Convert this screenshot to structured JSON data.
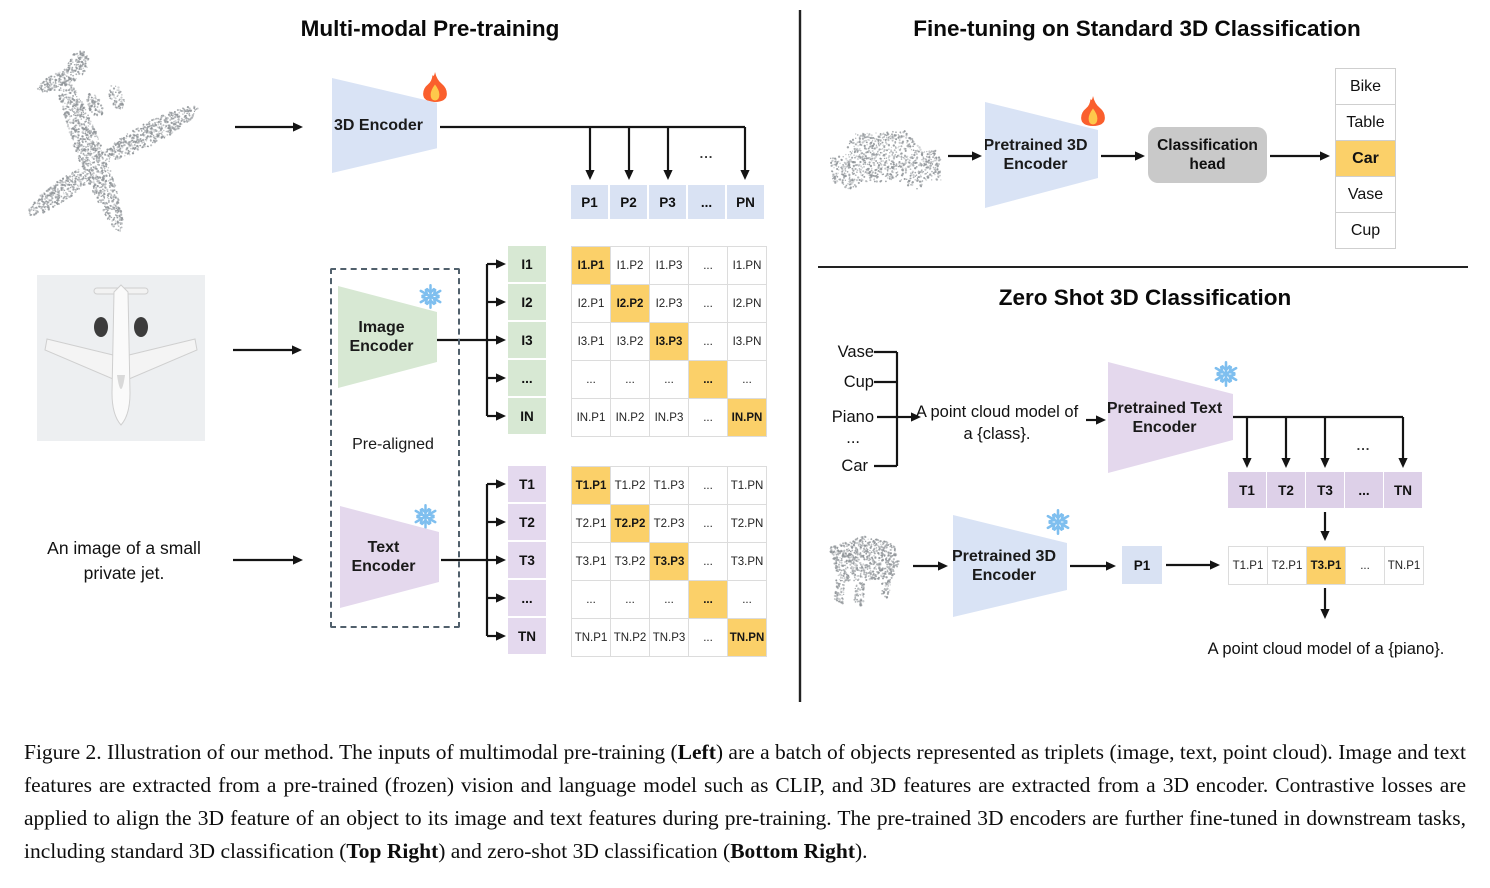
{
  "figure": {
    "left": {
      "title": "Multi-modal Pre-training",
      "encoder3d_label": "3D Encoder",
      "image_encoder": [
        "Image",
        "Encoder"
      ],
      "text_encoder": [
        "Text",
        "Encoder"
      ],
      "prealigned": "Pre-aligned",
      "input_text": [
        "An image of a small",
        "private jet."
      ],
      "dots": "...",
      "p_row": [
        "P1",
        "P2",
        "P3",
        "...",
        "PN"
      ],
      "i_col": [
        "I1",
        "I2",
        "I3",
        "...",
        "IN"
      ],
      "t_col": [
        "T1",
        "T2",
        "T3",
        "...",
        "TN"
      ],
      "i_matrix": [
        {
          "t": "I1.P1",
          "h": true
        },
        {
          "t": "I1.P2"
        },
        {
          "t": "I1.P3"
        },
        {
          "t": "..."
        },
        {
          "t": "I1.PN"
        },
        {
          "t": "I2.P1"
        },
        {
          "t": "I2.P2",
          "h": true
        },
        {
          "t": "I2.P3"
        },
        {
          "t": "..."
        },
        {
          "t": "I2.PN"
        },
        {
          "t": "I3.P1"
        },
        {
          "t": "I3.P2"
        },
        {
          "t": "I3.P3",
          "h": true
        },
        {
          "t": "..."
        },
        {
          "t": "I3.PN"
        },
        {
          "t": "..."
        },
        {
          "t": "..."
        },
        {
          "t": "..."
        },
        {
          "t": "...",
          "h": true
        },
        {
          "t": "..."
        },
        {
          "t": "IN.P1"
        },
        {
          "t": "IN.P2"
        },
        {
          "t": "IN.P3"
        },
        {
          "t": "..."
        },
        {
          "t": "IN.PN",
          "h": true
        }
      ],
      "t_matrix": [
        {
          "t": "T1.P1",
          "h": true
        },
        {
          "t": "T1.P2"
        },
        {
          "t": "T1.P3"
        },
        {
          "t": "..."
        },
        {
          "t": "T1.PN"
        },
        {
          "t": "T2.P1"
        },
        {
          "t": "T2.P2",
          "h": true
        },
        {
          "t": "T2.P3"
        },
        {
          "t": "..."
        },
        {
          "t": "T2.PN"
        },
        {
          "t": "T3.P1"
        },
        {
          "t": "T3.P2"
        },
        {
          "t": "T3.P3",
          "h": true
        },
        {
          "t": "..."
        },
        {
          "t": "T3.PN"
        },
        {
          "t": "..."
        },
        {
          "t": "..."
        },
        {
          "t": "..."
        },
        {
          "t": "...",
          "h": true
        },
        {
          "t": "..."
        },
        {
          "t": "TN.P1"
        },
        {
          "t": "TN.P2"
        },
        {
          "t": "TN.P3"
        },
        {
          "t": "..."
        },
        {
          "t": "TN.PN",
          "h": true
        }
      ]
    },
    "finetune": {
      "title": "Fine-tuning on Standard 3D Classification",
      "encoder": [
        "Pretrained 3D",
        "Encoder"
      ],
      "head": [
        "Classification",
        "head"
      ],
      "classes": [
        {
          "t": "Bike"
        },
        {
          "t": "Table"
        },
        {
          "t": "Car",
          "h": true
        },
        {
          "t": "Vase"
        },
        {
          "t": "Cup"
        }
      ]
    },
    "zeroshot": {
      "title": "Zero Shot 3D Classification",
      "classes": [
        "Vase",
        "Cup",
        "Piano",
        "...",
        "Car"
      ],
      "prompt": [
        "A point cloud model of",
        "a {class}."
      ],
      "text_encoder": [
        "Pretrained Text",
        "Encoder"
      ],
      "encoder": [
        "Pretrained 3D",
        "Encoder"
      ],
      "p1": "P1",
      "t_row": [
        "T1",
        "T2",
        "T3",
        "...",
        "TN"
      ],
      "sim_row": [
        {
          "t": "T1.P1"
        },
        {
          "t": "T2.P1"
        },
        {
          "t": "T3.P1",
          "h": true
        },
        {
          "t": "..."
        },
        {
          "t": "TN.P1"
        }
      ],
      "dots": "...",
      "result": "A point cloud model of a {piano}."
    },
    "icons": {
      "trainable": "fire-icon",
      "frozen": "snowflake-icon"
    },
    "colors": {
      "blue": "#d9e2f3",
      "green": "#d7e8d3",
      "purple": "#e4d9ee",
      "purple_row": "#ddd0e8",
      "highlight_orange": "#fbd069",
      "head_gray": "#c9c9c9"
    }
  },
  "caption": {
    "segments": [
      {
        "t": "Figure 2. Illustration of our method. The inputs of multimodal pre-training (",
        "b": false
      },
      {
        "t": "Left",
        "b": true
      },
      {
        "t": ") are a batch of objects represented as triplets (image, text, point cloud). Image and text features are extracted from a pre-trained (frozen) vision and language model such as CLIP, and 3D features are extracted from a 3D encoder. Contrastive losses are applied to align the 3D feature of an object to its image and text features during pre-training. The pre-trained 3D encoders are further fine-tuned in downstream tasks, including standard 3D classification (",
        "b": false
      },
      {
        "t": "Top Right",
        "b": true
      },
      {
        "t": ") and zero-shot 3D classification (",
        "b": false
      },
      {
        "t": "Bottom Right",
        "b": true
      },
      {
        "t": ").",
        "b": false
      }
    ]
  }
}
